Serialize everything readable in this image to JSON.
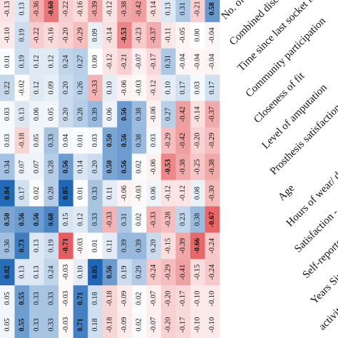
{
  "chart_data": {
    "type": "heatmap",
    "colorscale": {
      "negative": "#e0393b",
      "zero": "#ffffff",
      "positive": "#1a64b4"
    },
    "value_range": [
      -1,
      1
    ],
    "row_labels": [
      "No. of socket",
      "Combined discomf",
      "Time since last socket fit",
      "Community participation",
      "Closeness of fit",
      "Level of amputation",
      "Prosthesis satisfaction",
      "Age",
      "Hours of wear/ day",
      "Satisfaction - comfort",
      "Self-reported hours of wea",
      "Years Since Amputation",
      "activity"
    ],
    "column_values": [
      [
        "-0.13",
        "-0.10",
        "0.01",
        "0.22",
        "0.03",
        "0.03",
        "0.34",
        "0.84",
        "0.50",
        "0.36",
        "0.82",
        "0.05",
        "0.05"
      ],
      [
        "0.13",
        "0.19",
        "0.19",
        "-0.02",
        "0.13",
        "-0.18",
        "0.07",
        "0.17",
        "0.56",
        "0.73",
        "0.13",
        "0.55",
        "0.55"
      ],
      [
        "-0.36",
        "-0.22",
        "0.12",
        "0.12",
        "0.06",
        "0.05",
        "0.07",
        "0.02",
        "0.56",
        "0.13",
        "0.13",
        "0.33",
        "0.33"
      ],
      [
        "-0.60",
        "-0.16",
        "0.12",
        "0.09",
        "0.05",
        "0.33",
        "0.28",
        "0.28",
        "0.68",
        "0.19",
        "0.24",
        "0.33",
        "0.33"
      ],
      [
        "-0.22",
        "-0.20",
        "0.24",
        "0.20",
        "0.20",
        "0.04",
        "0.56",
        "0.85",
        "0.15",
        "-0.71",
        "-0.03",
        "-0.03",
        "-0.03"
      ],
      [
        "-0.16",
        "-0.29",
        "0.27",
        "0.26",
        "0.28",
        "0.01",
        "0.14",
        "0.01",
        "0.12",
        "-0.03",
        "0.10",
        "0.71",
        "0.71"
      ],
      [
        "-0.39",
        "0.09",
        "0.00",
        "-0.33",
        "0.39",
        "0.03",
        "0.20",
        "0.33",
        "0.33",
        "0.01",
        "0.85",
        "0.18",
        "0.18"
      ],
      [
        "-0.12",
        "-0.14",
        "-0.12",
        "0.10",
        "0.06",
        "0.50",
        "0.50",
        "0.11",
        "-0.33",
        "0.11",
        "0.56",
        "-0.18",
        "-0.18"
      ],
      [
        "-0.38",
        "-0.53",
        "-0.21",
        "-0.06",
        "0.56",
        "0.56",
        "0.56",
        "-0.06",
        "0.31",
        "0.39",
        "0.19",
        "-0.09",
        "-0.09"
      ],
      [
        "-0.42",
        "-0.23",
        "-0.07",
        "-0.03",
        "0.38",
        "0.38",
        "0.02",
        "-0.03",
        "0.02",
        "0.39",
        "0.29",
        "0.02",
        "0.02"
      ],
      [
        "-0.14",
        "-0.37",
        "-0.17",
        "-0.12",
        "-0.06",
        "0.03",
        "-0.06",
        "0.06",
        "-0.33",
        "0.20",
        "-0.24",
        "-0.07",
        "-0.07"
      ],
      [
        "0.13",
        "-0.11",
        "0.31",
        "0.10",
        "0.27",
        "-0.29",
        "-0.53",
        "-0.12",
        "-0.28",
        "-0.15",
        "-0.29",
        "-0.20",
        "-0.20"
      ],
      [
        "0.31",
        "-0.05",
        "-0.04",
        "0.17",
        "-0.42",
        "-0.42",
        "-0.38",
        "-0.12",
        "0.23",
        "-0.39",
        "-0.41",
        "-0.17",
        "-0.17"
      ],
      [
        "-0.21",
        "0.00",
        "-0.04",
        "0.03",
        "-0.14",
        "-0.20",
        "-0.25",
        "0.08",
        "0.38",
        "-0.66",
        "-0.15",
        "-0.10",
        "-0.10"
      ],
      [
        "0.58",
        "-0.04",
        "-0.04",
        "0.17",
        "-0.37",
        "-0.29",
        "-0.38",
        "-0.30",
        "-0.67",
        "-0.24",
        "-0.24",
        "-0.10",
        "-0.10"
      ]
    ],
    "xlabel": "",
    "ylabel": ""
  }
}
